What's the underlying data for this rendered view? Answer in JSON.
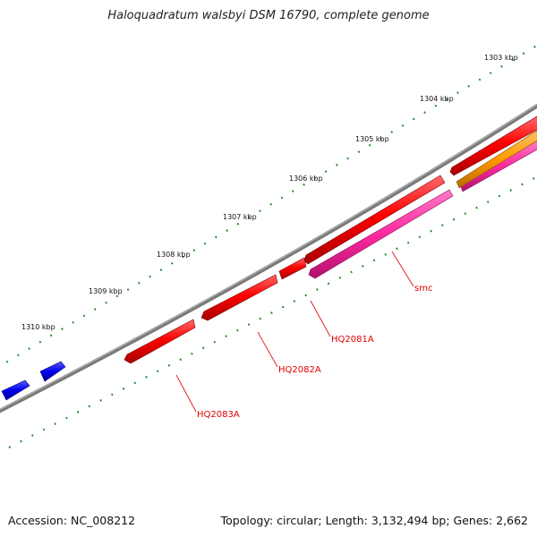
{
  "title": "Haloquadratum walsbyi DSM 16790, complete genome",
  "footer": {
    "accession": "Accession: NC_008212",
    "summary": "Topology: circular; Length: 3,132,494 bp; Genes: 2,662"
  },
  "scale": {
    "labels": [
      "1303 kbp",
      "1304 kbp",
      "1305 kbp",
      "1306 kbp",
      "1307 kbp",
      "1308 kbp",
      "1309 kbp",
      "1310 kbp"
    ]
  },
  "genes": {
    "labels": [
      "smc",
      "HQ2081A",
      "HQ2082A",
      "HQ2083A"
    ]
  },
  "colors": {
    "backbone": "#808080",
    "gene_red": "#ff0000",
    "gene_blue": "#0000ee",
    "gene_magenta": "#ff2aa0",
    "gene_orange": "#ff9900",
    "tick_green": "#1f8a1f",
    "label_red": "#e00000"
  }
}
